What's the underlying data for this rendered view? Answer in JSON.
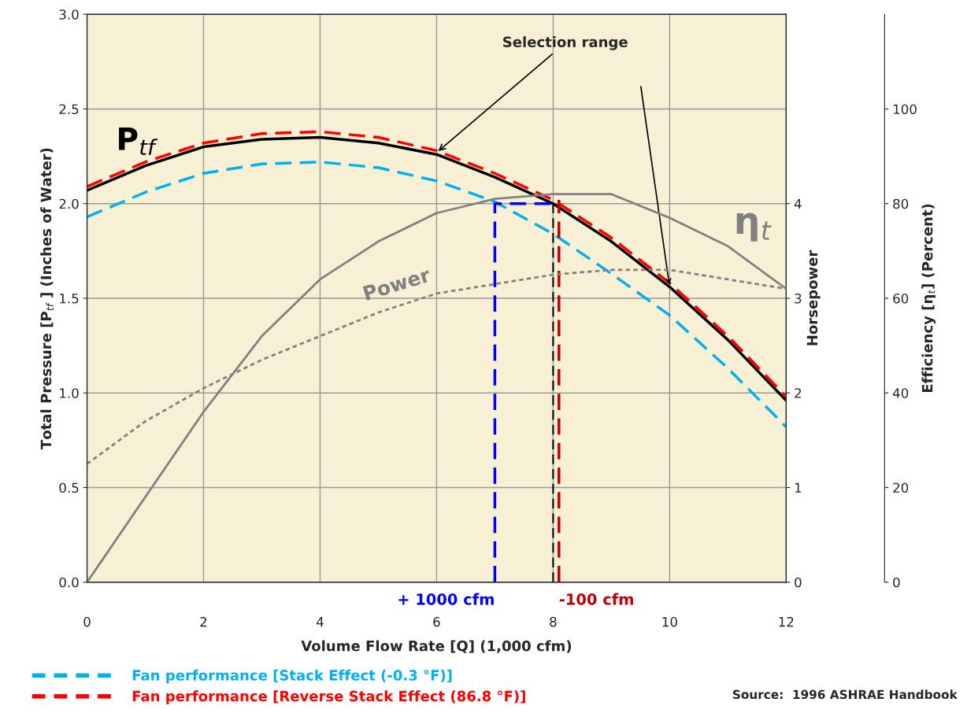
{
  "chart_data": {
    "type": "line",
    "x": [
      0,
      1,
      2,
      3,
      4,
      5,
      6,
      7,
      8,
      9,
      10,
      11,
      12
    ],
    "series": [
      {
        "name": "P$_{tf}$",
        "color": "#000000",
        "line_style": "solid",
        "values": [
          2.07,
          2.2,
          2.3,
          2.34,
          2.35,
          2.32,
          2.26,
          2.14,
          2.0,
          1.8,
          1.56,
          1.28,
          0.96
        ]
      },
      {
        "name": "Fan performance [Stack Effect (-0.3 °F)]",
        "color": "#00b0f0",
        "line_style": "dashed",
        "values": [
          1.93,
          2.06,
          2.16,
          2.21,
          2.22,
          2.19,
          2.12,
          2.01,
          1.84,
          1.63,
          1.41,
          1.13,
          0.82
        ]
      },
      {
        "name": "Fan performance [Reverse Stack Effect (86.8 °F)]",
        "color": "#ff0000",
        "line_style": "dashed",
        "values": [
          2.09,
          2.22,
          2.32,
          2.37,
          2.38,
          2.35,
          2.28,
          2.16,
          2.02,
          1.82,
          1.58,
          1.3,
          0.98
        ]
      },
      {
        "name": "η$_{t}$",
        "color": "#808080",
        "line_style": "solid",
        "axis": "y3",
        "values": [
          0,
          18,
          36,
          52,
          64,
          72,
          78,
          81,
          82,
          82,
          77,
          71,
          62
        ]
      },
      {
        "name": "Power",
        "color": "#808080",
        "line_style": "dotted",
        "axis": "y2",
        "values": [
          1.25,
          1.7,
          2.05,
          2.35,
          2.6,
          2.85,
          3.05,
          3.15,
          3.25,
          3.3,
          3.3,
          3.2,
          3.1
        ]
      },
      {
        "color": "#0000ff",
        "line_style": "dashed",
        "x": [
          7,
          7,
          8
        ],
        "values": [
          0,
          2.0,
          2.0
        ]
      },
      {
        "color": "#000000",
        "line_style": "dashed",
        "x": [
          8,
          8
        ],
        "values": [
          0,
          2.0
        ]
      },
      {
        "color": "#c00000",
        "line_style": "dashed",
        "x": [
          8.1,
          8.1
        ],
        "values": [
          0,
          2.02
        ]
      }
    ],
    "xlabel": "Volume Flow Rate [Q] (1,000 cfm)",
    "ylabel": "Total Pressure [P$_{tf}$ ] (Inches of Water)",
    "y2label": "Horsepower",
    "y3label": "Efficiency [η$_{t}$] (Percent)",
    "xlim": [
      0,
      12
    ],
    "xticks": [
      0,
      2,
      4,
      6,
      8,
      10,
      12
    ],
    "ylim": [
      0,
      3
    ],
    "yticks": [
      {
        "value": 0,
        "label": "0.0"
      },
      0.5,
      {
        "value": 1,
        "label": "1.0"
      },
      1.5,
      {
        "value": 2,
        "label": "2.0"
      },
      2.5,
      {
        "value": 3,
        "label": "3.0"
      }
    ],
    "y2lim": [
      0,
      6
    ],
    "y2ticks": [
      0,
      1,
      2,
      3,
      4
    ],
    "y3lim": [
      0,
      120
    ],
    "y3ticks": [
      0,
      20,
      40,
      60,
      80,
      100
    ],
    "grid": true,
    "legend": "bottom left",
    "annotations": [
      {
        "text": "Selection range",
        "x": 6,
        "y": 2.27
      },
      {
        "text": "+ 1000 cfm",
        "x": 7,
        "y": 0
      },
      {
        "text": "-100 cfm",
        "x": 8.1,
        "y": 0
      },
      "Source:  1996 ASHRAE Handbook"
    ]
  }
}
